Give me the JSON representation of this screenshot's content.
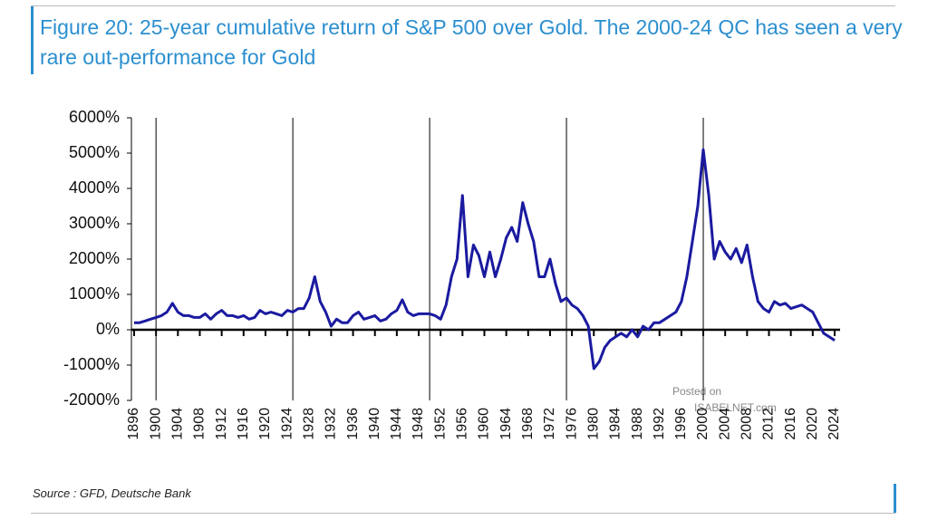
{
  "chart_data": {
    "type": "line",
    "title": "Figure 20: 25-year cumulative return of S&P 500 over Gold. The 2000-24 QC has seen a very rare out-performance for Gold",
    "source": "Source : GFD, Deutsche Bank",
    "watermark": [
      "Posted on",
      "ISABELNET.com"
    ],
    "xlim": [
      1896,
      2025
    ],
    "ylim": [
      -2000,
      6000
    ],
    "yticks": [
      {
        "value": -2000,
        "label": "-2000%"
      },
      {
        "value": -1000,
        "label": "-1000%"
      },
      {
        "value": 0,
        "label": "0%"
      },
      {
        "value": 1000,
        "label": "1000%"
      },
      {
        "value": 2000,
        "label": "2000%"
      },
      {
        "value": 3000,
        "label": "3000%"
      },
      {
        "value": 4000,
        "label": "4000%"
      },
      {
        "value": 5000,
        "label": "5000%"
      },
      {
        "value": 6000,
        "label": "6000%"
      }
    ],
    "xticks": [
      1896,
      1900,
      1904,
      1908,
      1912,
      1916,
      1920,
      1924,
      1928,
      1932,
      1936,
      1940,
      1944,
      1948,
      1952,
      1956,
      1960,
      1964,
      1968,
      1972,
      1976,
      1980,
      1984,
      1988,
      1992,
      1996,
      2000,
      2004,
      2008,
      2012,
      2016,
      2020,
      2024
    ],
    "vlines": [
      1900,
      1925,
      1950,
      1975,
      2000
    ],
    "series": [
      {
        "color": "#1a1aa0",
        "x": [
          1896,
          1897,
          1898,
          1899,
          1900,
          1901,
          1902,
          1903,
          1904,
          1905,
          1906,
          1907,
          1908,
          1909,
          1910,
          1911,
          1912,
          1913,
          1914,
          1915,
          1916,
          1917,
          1918,
          1919,
          1920,
          1921,
          1922,
          1923,
          1924,
          1925,
          1926,
          1927,
          1928,
          1929,
          1930,
          1931,
          1932,
          1933,
          1934,
          1935,
          1936,
          1937,
          1938,
          1939,
          1940,
          1941,
          1942,
          1943,
          1944,
          1945,
          1946,
          1947,
          1948,
          1949,
          1950,
          1951,
          1952,
          1953,
          1954,
          1955,
          1956,
          1957,
          1958,
          1959,
          1960,
          1961,
          1962,
          1963,
          1964,
          1965,
          1966,
          1967,
          1968,
          1969,
          1970,
          1971,
          1972,
          1973,
          1974,
          1975,
          1976,
          1977,
          1978,
          1979,
          1980,
          1981,
          1982,
          1983,
          1984,
          1985,
          1986,
          1987,
          1988,
          1989,
          1990,
          1991,
          1992,
          1993,
          1994,
          1995,
          1996,
          1997,
          1998,
          1999,
          2000,
          2001,
          2002,
          2003,
          2004,
          2005,
          2006,
          2007,
          2008,
          2009,
          2010,
          2011,
          2012,
          2013,
          2014,
          2015,
          2016,
          2017,
          2018,
          2019,
          2020,
          2021,
          2022,
          2023,
          2024
        ],
        "values": [
          200,
          200,
          250,
          300,
          350,
          400,
          500,
          750,
          500,
          400,
          400,
          350,
          350,
          450,
          300,
          450,
          550,
          400,
          400,
          350,
          400,
          300,
          350,
          550,
          450,
          500,
          450,
          400,
          550,
          500,
          600,
          600,
          900,
          1500,
          800,
          500,
          100,
          300,
          200,
          200,
          400,
          500,
          300,
          350,
          400,
          250,
          300,
          450,
          550,
          850,
          500,
          400,
          450,
          450,
          450,
          400,
          300,
          700,
          1500,
          2000,
          3800,
          1500,
          2400,
          2100,
          1500,
          2200,
          1500,
          2000,
          2600,
          2900,
          2500,
          3600,
          3000,
          2500,
          1500,
          1500,
          2000,
          1300,
          800,
          900,
          700,
          600,
          400,
          100,
          -1100,
          -900,
          -500,
          -300,
          -200,
          -100,
          -200,
          0,
          -200,
          100,
          0,
          200,
          200,
          300,
          400,
          500,
          800,
          1500,
          2500,
          3500,
          5100,
          3800,
          2000,
          2500,
          2200,
          2000,
          2300,
          1900,
          2400,
          1500,
          800,
          600,
          500,
          800,
          700,
          750,
          600,
          650,
          700,
          600,
          500,
          200,
          -100,
          -200,
          -300
        ]
      }
    ]
  }
}
